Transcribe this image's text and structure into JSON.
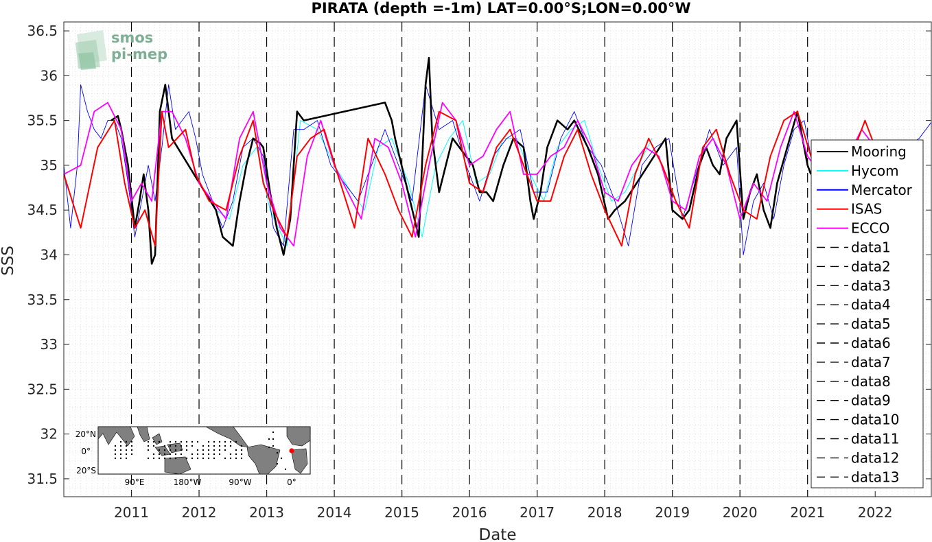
{
  "chart_data": {
    "type": "line",
    "title": "PIRATA (depth =-1m) LAT=0.00°S;LON=0.00°W",
    "xlabel": "Date",
    "ylabel": "SSS",
    "xlim": [
      "2010-01-01",
      "2022-10-31"
    ],
    "ylim": [
      31.3,
      36.6
    ],
    "x_ticks": [
      "2011",
      "2012",
      "2013",
      "2014",
      "2015",
      "2016",
      "2017",
      "2018",
      "2019",
      "2020",
      "2021",
      "2022"
    ],
    "y_ticks": [
      "31.5",
      "32",
      "32.5",
      "33",
      "33.5",
      "34",
      "34.5",
      "35",
      "35.5",
      "36",
      "36.5"
    ],
    "grid": "minor dotted",
    "legend_position": "right",
    "vertical_lines": [
      "2011",
      "2012",
      "2013",
      "2014",
      "2015",
      "2016",
      "2017",
      "2018",
      "2019",
      "2020",
      "2021"
    ],
    "series": [
      {
        "name": "Mooring",
        "color": "#000000",
        "x": [
          2010.7,
          2010.8,
          2010.85,
          2010.95,
          2011.05,
          2011.12,
          2011.18,
          2011.25,
          2011.3,
          2011.35,
          2011.42,
          2011.5,
          2011.6,
          2012.25,
          2012.35,
          2012.5,
          2012.6,
          2012.7,
          2012.8,
          2012.9,
          2012.95,
          2013.05,
          2013.15,
          2013.25,
          2013.35,
          2013.45,
          2013.55,
          2014.75,
          2014.85,
          2014.9,
          2015.25,
          2015.35,
          2015.4,
          2015.45,
          2015.55,
          2015.75,
          2016.05,
          2016.15,
          2016.25,
          2016.35,
          2016.5,
          2016.65,
          2016.8,
          2016.9,
          2016.95,
          2017.05,
          2017.15,
          2017.3,
          2017.45,
          2017.55,
          2017.75,
          2017.9,
          2018.05,
          2018.15,
          2018.3,
          2018.9,
          2019.0,
          2019.15,
          2019.25,
          2019.4,
          2019.5,
          2019.6,
          2019.7,
          2019.8,
          2019.95,
          2020.05,
          2020.15,
          2020.25,
          2020.35,
          2020.45,
          2020.55,
          2020.7,
          2020.85,
          2021.0,
          2021.05
        ],
        "y": [
          35.5,
          35.55,
          35.4,
          35.0,
          34.3,
          34.6,
          34.9,
          34.5,
          33.9,
          34.0,
          35.6,
          35.9,
          35.3,
          34.5,
          34.2,
          34.1,
          34.6,
          35.0,
          35.3,
          35.25,
          35.2,
          34.7,
          34.3,
          34.0,
          34.4,
          35.6,
          35.5,
          35.7,
          35.5,
          35.3,
          34.2,
          35.9,
          36.2,
          35.3,
          34.7,
          35.3,
          35.0,
          34.7,
          34.7,
          34.6,
          35.0,
          35.3,
          35.2,
          34.6,
          34.4,
          34.7,
          35.2,
          35.5,
          35.4,
          35.5,
          35.2,
          34.9,
          34.4,
          34.5,
          34.6,
          35.3,
          34.5,
          34.4,
          34.5,
          35.0,
          35.2,
          35.0,
          34.9,
          35.3,
          35.5,
          34.4,
          34.7,
          34.9,
          34.5,
          34.3,
          34.8,
          35.2,
          35.6,
          35.0,
          34.9
        ]
      },
      {
        "name": "Hycom",
        "color": "#00ffff",
        "x": [
          2012.25,
          2012.45,
          2012.65,
          2012.85,
          2013.05,
          2013.3,
          2013.5,
          2013.75,
          2014.0,
          2014.25,
          2014.45,
          2014.65,
          2014.85,
          2015.1,
          2015.3,
          2015.5,
          2015.7,
          2015.9,
          2016.1,
          2016.3,
          2016.5,
          2016.7,
          2016.9,
          2017.1,
          2017.3,
          2017.5,
          2017.7,
          2017.9,
          2018.1,
          2018.3,
          2018.5,
          2018.7
        ],
        "y": [
          34.5,
          34.4,
          35.0,
          35.2,
          34.5,
          34.1,
          35.5,
          35.4,
          35.0,
          34.7,
          34.5,
          35.2,
          35.3,
          34.8,
          34.2,
          35.0,
          35.3,
          35.5,
          34.8,
          34.9,
          35.3,
          35.3,
          34.9,
          34.6,
          35.2,
          35.4,
          35.5,
          35.0,
          34.6,
          34.7,
          35.0,
          35.3
        ]
      },
      {
        "name": "Mercator",
        "color": "#0000ff",
        "x": [
          2010.0,
          2010.1,
          2010.2,
          2010.25,
          2010.35,
          2010.45,
          2010.55,
          2010.65,
          2010.75,
          2010.85,
          2010.95,
          2011.05,
          2011.15,
          2011.25,
          2011.35,
          2011.45,
          2011.55,
          2011.65,
          2011.75,
          2011.85,
          2011.95,
          2012.05,
          2012.2,
          2012.35,
          2012.5,
          2012.65,
          2012.8,
          2012.95,
          2013.1,
          2013.25,
          2013.4,
          2013.55,
          2013.75,
          2013.95,
          2014.15,
          2014.35,
          2014.55,
          2014.75,
          2014.95,
          2015.15,
          2015.35,
          2015.55,
          2015.75,
          2015.95,
          2016.15,
          2016.35,
          2016.55,
          2016.75,
          2016.95,
          2017.15,
          2017.35,
          2017.55,
          2017.75,
          2017.95,
          2018.15,
          2018.35,
          2018.55,
          2018.75,
          2018.95,
          2019.15,
          2019.35,
          2019.55,
          2019.75,
          2019.95,
          2020.05,
          2020.2,
          2020.35,
          2020.5,
          2020.65,
          2020.8,
          2020.95,
          2021.1,
          2021.25,
          2021.45,
          2021.65,
          2021.85,
          2022.05,
          2022.25,
          2022.45,
          2022.65,
          2022.85
        ],
        "y": [
          35.0,
          34.3,
          35.0,
          35.9,
          35.6,
          35.4,
          35.3,
          35.5,
          35.5,
          35.3,
          34.8,
          34.2,
          34.6,
          35.0,
          34.6,
          35.2,
          35.9,
          35.4,
          35.5,
          35.6,
          35.3,
          34.9,
          34.6,
          34.3,
          34.6,
          35.2,
          35.3,
          35.1,
          34.3,
          34.1,
          35.4,
          35.4,
          35.5,
          35.0,
          34.8,
          34.6,
          35.0,
          35.4,
          35.0,
          34.6,
          35.9,
          35.4,
          35.5,
          35.0,
          34.6,
          35.1,
          35.3,
          35.4,
          34.7,
          34.7,
          35.3,
          35.6,
          35.2,
          35.0,
          34.6,
          34.1,
          35.0,
          35.2,
          35.3,
          34.4,
          34.9,
          35.4,
          35.0,
          35.2,
          34.0,
          34.6,
          34.8,
          34.4,
          35.0,
          35.4,
          35.5,
          34.9,
          34.9,
          35.1,
          35.0,
          35.1,
          35.0,
          35.1,
          35.2,
          35.3,
          35.5
        ]
      },
      {
        "name": "ISAS",
        "color": "#ff0000",
        "x": [
          2010.0,
          2010.25,
          2010.5,
          2010.75,
          2010.9,
          2011.05,
          2011.2,
          2011.35,
          2011.45,
          2011.55,
          2011.8,
          2011.95,
          2012.15,
          2012.4,
          2012.6,
          2012.8,
          2012.95,
          2013.1,
          2013.3,
          2013.45,
          2013.65,
          2013.85,
          2014.05,
          2014.3,
          2014.5,
          2014.75,
          2014.95,
          2015.15,
          2015.35,
          2015.55,
          2015.8,
          2016.0,
          2016.2,
          2016.4,
          2016.6,
          2016.8,
          2017.0,
          2017.2,
          2017.4,
          2017.6,
          2017.8,
          2018.0,
          2018.25,
          2018.45,
          2018.65,
          2018.85,
          2019.05,
          2019.25,
          2019.45,
          2019.65,
          2019.85,
          2020.05,
          2020.25,
          2020.45,
          2020.65,
          2020.85,
          2021.05,
          2021.25,
          2021.45,
          2021.65,
          2021.85,
          2022.05
        ],
        "y": [
          34.9,
          34.3,
          35.2,
          35.5,
          34.8,
          34.3,
          34.5,
          34.1,
          35.6,
          35.2,
          35.4,
          34.9,
          34.6,
          34.5,
          35.1,
          35.5,
          34.8,
          34.5,
          34.2,
          35.1,
          35.3,
          35.4,
          34.9,
          34.3,
          35.3,
          34.9,
          34.5,
          34.2,
          35.0,
          35.6,
          35.5,
          34.8,
          34.7,
          35.2,
          35.4,
          35.0,
          34.6,
          34.6,
          35.1,
          35.4,
          34.9,
          34.5,
          34.1,
          34.9,
          35.3,
          35.0,
          34.6,
          34.3,
          35.2,
          35.4,
          34.9,
          34.5,
          34.4,
          35.1,
          35.5,
          35.6,
          35.1,
          34.8,
          34.9,
          35.1,
          35.5,
          35.1
        ]
      },
      {
        "name": "ECCO",
        "color": "#ff00ff",
        "x": [
          2010.0,
          2010.25,
          2010.45,
          2010.65,
          2010.85,
          2011.0,
          2011.15,
          2011.3,
          2011.45,
          2011.6,
          2011.8,
          2012.0,
          2012.2,
          2012.4,
          2012.6,
          2012.8,
          2013.0,
          2013.2,
          2013.4,
          2013.6,
          2013.8,
          2014.0,
          2014.2,
          2014.4,
          2014.6,
          2014.8,
          2015.0,
          2015.2,
          2015.4,
          2015.6,
          2015.8,
          2016.0,
          2016.2,
          2016.4,
          2016.6,
          2016.8,
          2017.0,
          2017.2,
          2017.4,
          2017.6,
          2017.8,
          2018.0,
          2018.2,
          2018.4,
          2018.6,
          2018.8,
          2019.0,
          2019.2,
          2019.4,
          2019.6,
          2019.8,
          2020.0,
          2020.2,
          2020.4,
          2020.6,
          2020.8,
          2021.0,
          2021.2,
          2021.4,
          2021.6,
          2021.8,
          2022.0
        ],
        "y": [
          34.9,
          35.0,
          35.6,
          35.7,
          35.4,
          34.6,
          34.8,
          34.6,
          35.6,
          35.6,
          35.3,
          34.8,
          34.6,
          34.4,
          35.3,
          35.6,
          34.8,
          34.3,
          34.1,
          35.1,
          35.5,
          35.0,
          34.7,
          34.4,
          35.3,
          35.2,
          34.8,
          34.2,
          35.0,
          35.7,
          35.5,
          35.0,
          35.1,
          35.4,
          35.6,
          34.9,
          34.9,
          35.1,
          35.2,
          35.5,
          35.2,
          34.7,
          34.6,
          35.0,
          35.2,
          35.1,
          34.6,
          34.5,
          35.1,
          35.3,
          35.0,
          34.4,
          34.8,
          34.6,
          35.2,
          35.6,
          35.1,
          34.9,
          35.0,
          35.1,
          35.4,
          35.2
        ]
      }
    ],
    "legend_extra": [
      "data1",
      "data2",
      "data3",
      "data4",
      "data5",
      "data6",
      "data7",
      "data8",
      "data9",
      "data10",
      "data11",
      "data12",
      "data13"
    ]
  },
  "inset_map": {
    "lat_labels": [
      "20°N",
      "0°",
      "20°S"
    ],
    "lon_labels": [
      "90°E",
      "180°W",
      "90°W",
      "0°"
    ],
    "land_color": "#808080",
    "ocean_color": "#ffffff",
    "marker_color": "#ff0000"
  },
  "logo": {
    "line1": "smos",
    "line2": "pi-mep"
  }
}
